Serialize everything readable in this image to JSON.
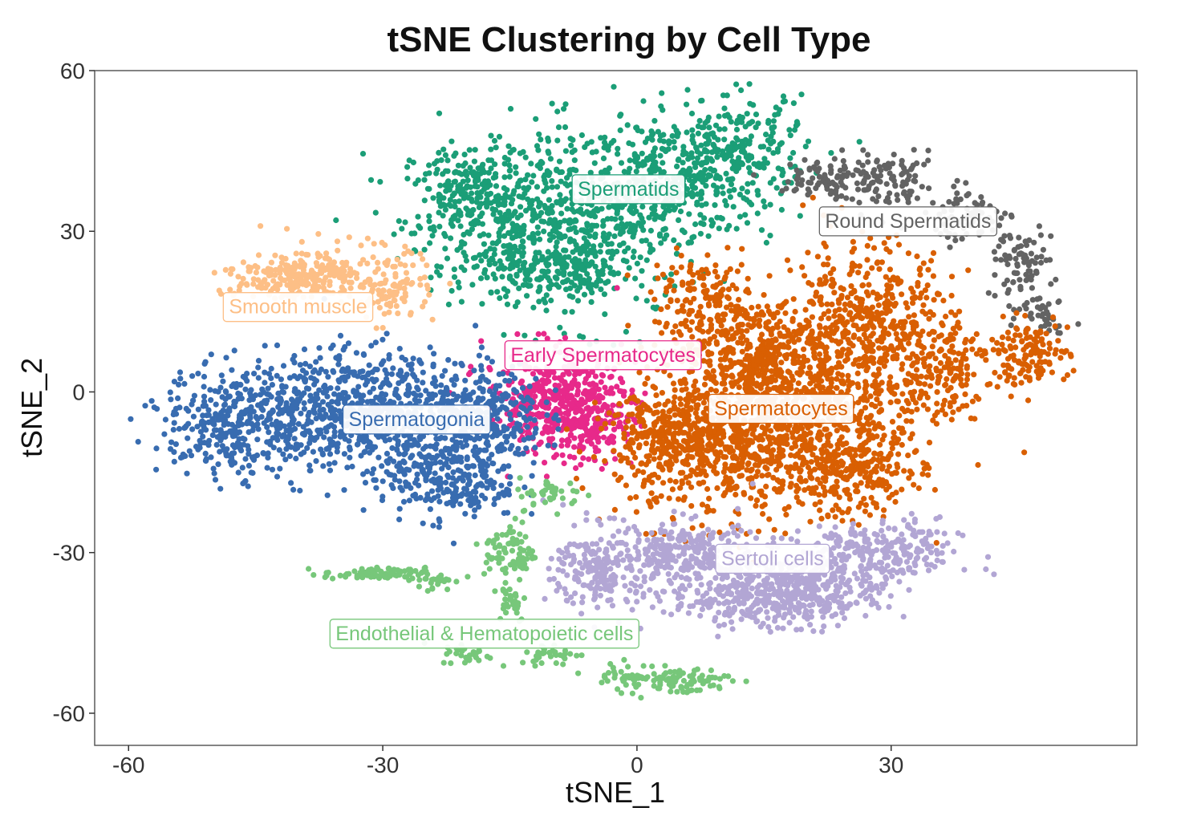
{
  "chart_data": {
    "type": "scatter",
    "title": "tSNE Clustering by Cell Type",
    "xlabel": "tSNE_1",
    "ylabel": "tSNE_2",
    "xlim": [
      -64,
      59
    ],
    "ylim": [
      -66,
      60
    ],
    "x_ticks": [
      -60,
      -30,
      0,
      30
    ],
    "y_ticks": [
      60,
      30,
      0,
      -30,
      -60
    ],
    "grid": false,
    "legend": "none",
    "series": [
      {
        "name": "Spermatids",
        "color": "#1b9e77",
        "label_pos": [
          -1,
          38
        ],
        "blobs": [
          {
            "cx": -16,
            "cy": 33,
            "sx": 6,
            "sy": 7,
            "n": 380
          },
          {
            "cx": -6,
            "cy": 30,
            "sx": 6,
            "sy": 8,
            "n": 380
          },
          {
            "cx": 4,
            "cy": 40,
            "sx": 6,
            "sy": 6,
            "n": 330
          },
          {
            "cx": 12,
            "cy": 45,
            "sx": 4,
            "sy": 5,
            "n": 220
          },
          {
            "cx": -10,
            "cy": 22,
            "sx": 5,
            "sy": 3,
            "n": 160
          },
          {
            "cx": -20,
            "cy": 38,
            "sx": 3,
            "sy": 3,
            "n": 90
          }
        ]
      },
      {
        "name": "Round Spermatids",
        "color": "#636363",
        "label_pos": [
          32,
          32
        ],
        "blobs": [
          {
            "cx": 23,
            "cy": 40,
            "sx": 3,
            "sy": 2,
            "n": 90
          },
          {
            "cx": 30,
            "cy": 39,
            "sx": 3,
            "sy": 2.5,
            "n": 90
          },
          {
            "cx": 39,
            "cy": 33,
            "sx": 2.5,
            "sy": 2.5,
            "n": 70
          },
          {
            "cx": 45,
            "cy": 24,
            "sx": 2,
            "sy": 3,
            "n": 80
          },
          {
            "cx": 48,
            "cy": 15,
            "sx": 1.5,
            "sy": 2,
            "n": 40
          }
        ]
      },
      {
        "name": "Smooth muscle",
        "color": "#fdbf86",
        "label_pos": [
          -40,
          16
        ],
        "blobs": [
          {
            "cx": -42,
            "cy": 21,
            "sx": 4,
            "sy": 2,
            "n": 150
          },
          {
            "cx": -35,
            "cy": 23,
            "sx": 4,
            "sy": 2.5,
            "n": 140
          },
          {
            "cx": -29,
            "cy": 18,
            "sx": 2.5,
            "sy": 2.5,
            "n": 80
          }
        ]
      },
      {
        "name": "Early Spermatocytes",
        "color": "#e7298a",
        "label_pos": [
          -4,
          7
        ],
        "blobs": [
          {
            "cx": -10,
            "cy": -2,
            "sx": 4,
            "sy": 5,
            "n": 400
          },
          {
            "cx": -5,
            "cy": -4,
            "sx": 2.5,
            "sy": 4,
            "n": 150
          }
        ]
      },
      {
        "name": "Spermatogonia",
        "color": "#386cb0",
        "label_pos": [
          -26,
          -5
        ],
        "blobs": [
          {
            "cx": -48,
            "cy": -6,
            "sx": 4,
            "sy": 5,
            "n": 280
          },
          {
            "cx": -38,
            "cy": -4,
            "sx": 5,
            "sy": 6,
            "n": 400
          },
          {
            "cx": -27,
            "cy": -4,
            "sx": 5,
            "sy": 6,
            "n": 420
          },
          {
            "cx": -22,
            "cy": -16,
            "sx": 4,
            "sy": 4,
            "n": 250
          },
          {
            "cx": -17,
            "cy": -4,
            "sx": 3,
            "sy": 5,
            "n": 200
          }
        ]
      },
      {
        "name": "Spermatocytes",
        "color": "#d95f02",
        "label_pos": [
          17,
          -3
        ],
        "blobs": [
          {
            "cx": 10,
            "cy": -10,
            "sx": 6,
            "sy": 7,
            "n": 550
          },
          {
            "cx": 20,
            "cy": -4,
            "sx": 6,
            "sy": 8,
            "n": 600
          },
          {
            "cx": 27,
            "cy": 12,
            "sx": 5,
            "sy": 8,
            "n": 500
          },
          {
            "cx": 14,
            "cy": 8,
            "sx": 5,
            "sy": 5,
            "n": 350
          },
          {
            "cx": 26,
            "cy": -15,
            "sx": 4,
            "sy": 4,
            "n": 220
          },
          {
            "cx": 4,
            "cy": -8,
            "sx": 4,
            "sy": 4,
            "n": 220
          },
          {
            "cx": 8,
            "cy": 17,
            "sx": 3,
            "sy": 4,
            "n": 140
          },
          {
            "cx": 46,
            "cy": 7,
            "sx": 2.5,
            "sy": 3,
            "n": 130
          },
          {
            "cx": 36,
            "cy": 5,
            "sx": 3,
            "sy": 5,
            "n": 150
          }
        ]
      },
      {
        "name": "Sertoli cells",
        "color": "#b2a6d4",
        "label_pos": [
          16,
          -31
        ],
        "blobs": [
          {
            "cx": -4,
            "cy": -33,
            "sx": 3,
            "sy": 4,
            "n": 220
          },
          {
            "cx": 6,
            "cy": -30,
            "sx": 4,
            "sy": 3,
            "n": 240
          },
          {
            "cx": 14,
            "cy": -38,
            "sx": 5,
            "sy": 3,
            "n": 320
          },
          {
            "cx": 22,
            "cy": -35,
            "sx": 4,
            "sy": 4,
            "n": 260
          },
          {
            "cx": 30,
            "cy": -30,
            "sx": 4,
            "sy": 3,
            "n": 200
          }
        ]
      },
      {
        "name": "Endothelial & Hematopoietic cells",
        "color": "#77c77a",
        "label_pos": [
          -18,
          -45
        ],
        "blobs": [
          {
            "cx": -31,
            "cy": -34,
            "sx": 3,
            "sy": 0.6,
            "n": 80
          },
          {
            "cx": -24,
            "cy": -35,
            "sx": 1.2,
            "sy": 1,
            "n": 25
          },
          {
            "cx": -15,
            "cy": -30,
            "sx": 1.5,
            "sy": 3,
            "n": 80
          },
          {
            "cx": -15,
            "cy": -39,
            "sx": 1,
            "sy": 2,
            "n": 30
          },
          {
            "cx": -10,
            "cy": -19,
            "sx": 2,
            "sy": 1.5,
            "n": 40
          },
          {
            "cx": -20,
            "cy": -49,
            "sx": 1.5,
            "sy": 1,
            "n": 30
          },
          {
            "cx": -10,
            "cy": -49,
            "sx": 2,
            "sy": 1,
            "n": 35
          },
          {
            "cx": 0,
            "cy": -53,
            "sx": 3,
            "sy": 1.2,
            "n": 50
          },
          {
            "cx": 5,
            "cy": -54,
            "sx": 3,
            "sy": 1.3,
            "n": 70
          }
        ]
      }
    ]
  }
}
